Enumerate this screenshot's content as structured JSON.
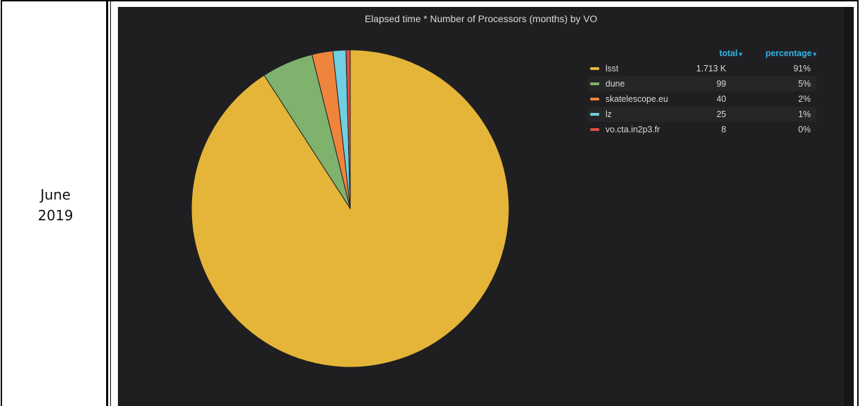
{
  "cell": {
    "month": "June",
    "year": "2019"
  },
  "panel": {
    "title": "Elapsed time * Number of Processors (months) by VO"
  },
  "legend": {
    "headers": {
      "total": "total",
      "percentage": "percentage",
      "caret": "▾"
    },
    "rows": [
      {
        "name": "lsst",
        "total": "1.713 K",
        "percentage": "91%",
        "color": "#e5b53a"
      },
      {
        "name": "dune",
        "total": "99",
        "percentage": "5%",
        "color": "#7eb26d"
      },
      {
        "name": "skatelescope.eu",
        "total": "40",
        "percentage": "2%",
        "color": "#ef843c"
      },
      {
        "name": "lz",
        "total": "25",
        "percentage": "1%",
        "color": "#6ed0e0"
      },
      {
        "name": "vo.cta.in2p3.fr",
        "total": "8",
        "percentage": "0%",
        "color": "#e24d42"
      }
    ]
  },
  "chart_data": {
    "type": "pie",
    "title": "Elapsed time * Number of Processors (months) by VO",
    "categories": [
      "lsst",
      "dune",
      "skatelescope.eu",
      "lz",
      "vo.cta.in2p3.fr"
    ],
    "values": [
      1713,
      99,
      40,
      25,
      8
    ],
    "percentages": [
      91,
      5,
      2,
      1,
      0
    ],
    "colors": [
      "#e5b53a",
      "#7eb26d",
      "#ef843c",
      "#6ed0e0",
      "#e24d42"
    ],
    "legend_position": "right"
  }
}
